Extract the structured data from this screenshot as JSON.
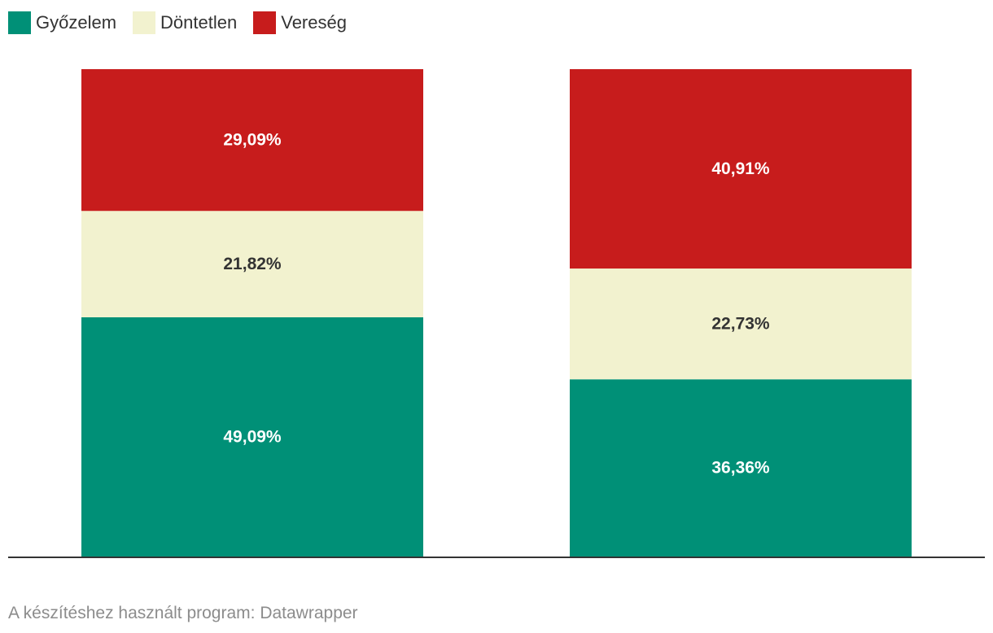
{
  "legend": {
    "items": [
      {
        "label": "Győzelem",
        "color": "#009077"
      },
      {
        "label": "Döntetlen",
        "color": "#f2f2cf"
      },
      {
        "label": "Vereség",
        "color": "#c71c1c"
      }
    ]
  },
  "footer": {
    "text": "A készítéshez használt program: Datawrapper"
  },
  "chart_data": {
    "type": "bar",
    "stacked": true,
    "normalized_percent": true,
    "categories": [
      "",
      ""
    ],
    "series": [
      {
        "name": "Győzelem",
        "color": "#009077",
        "values": [
          49.09,
          36.36
        ],
        "labels": [
          "49,09%",
          "36,36%"
        ],
        "label_color": "#ffffff"
      },
      {
        "name": "Döntetlen",
        "color": "#f2f2cf",
        "values": [
          21.82,
          22.73
        ],
        "labels": [
          "21,82%",
          "22,73%"
        ],
        "label_color": "#333333"
      },
      {
        "name": "Vereség",
        "color": "#c71c1c",
        "values": [
          29.09,
          40.91
        ],
        "labels": [
          "29,09%",
          "40,91%"
        ],
        "label_color": "#ffffff"
      }
    ],
    "ylim": [
      0,
      100
    ],
    "grid": false,
    "legend_position": "top-left"
  }
}
